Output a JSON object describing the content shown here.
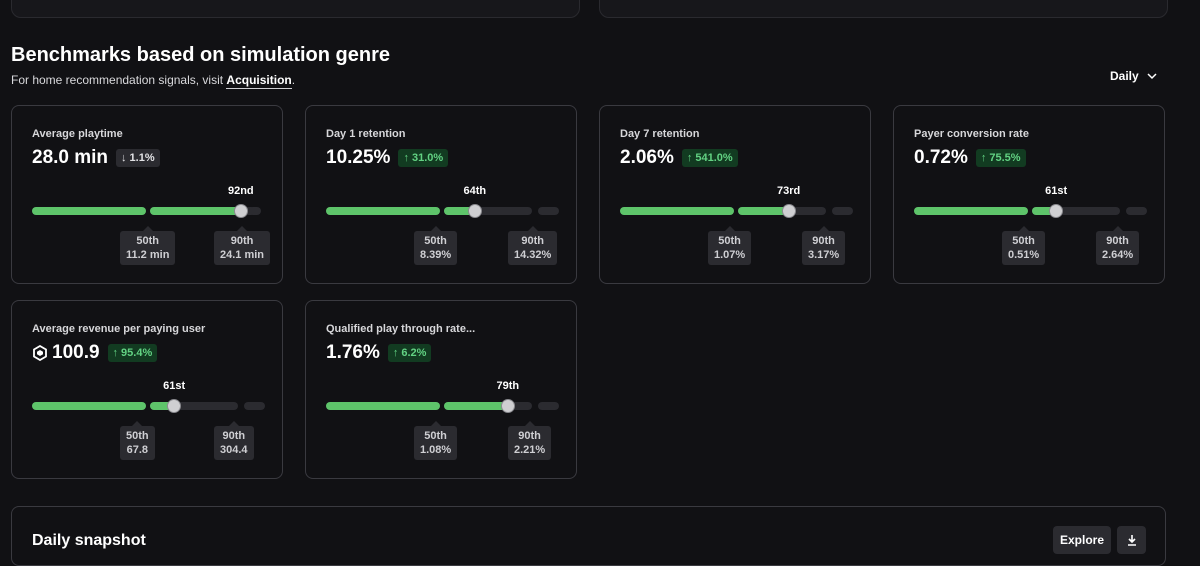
{
  "section": {
    "title": "Benchmarks based on simulation genre",
    "subtitle_prefix": "For home recommendation signals, visit ",
    "subtitle_link": "Acquisition",
    "subtitle_suffix": "."
  },
  "period_select": {
    "label": "Daily",
    "icon": "chevron-down-icon"
  },
  "colors": {
    "accent_green": "#5ec46a",
    "badge_up_bg": "#123b21",
    "badge_up_text": "#62d283",
    "card_border": "#3a3a40",
    "background": "#111114"
  },
  "metrics": [
    {
      "label": "Average playtime",
      "value": "28.0 min",
      "change": "1.1%",
      "direction": "down",
      "rank": "92nd",
      "percentile": 92,
      "p50_label": "50th",
      "p50_value": "11.2 min",
      "p90_label": "90th",
      "p90_value": "24.1 min"
    },
    {
      "label": "Day 1 retention",
      "value": "10.25%",
      "change": "31.0%",
      "direction": "up",
      "rank": "64th",
      "percentile": 64,
      "p50_label": "50th",
      "p50_value": "8.39%",
      "p90_label": "90th",
      "p90_value": "14.32%"
    },
    {
      "label": "Day 7 retention",
      "value": "2.06%",
      "change": "541.0%",
      "direction": "up",
      "rank": "73rd",
      "percentile": 73,
      "p50_label": "50th",
      "p50_value": "1.07%",
      "p90_label": "90th",
      "p90_value": "3.17%"
    },
    {
      "label": "Payer conversion rate",
      "value": "0.72%",
      "change": "75.5%",
      "direction": "up",
      "rank": "61st",
      "percentile": 61,
      "p50_label": "50th",
      "p50_value": "0.51%",
      "p90_label": "90th",
      "p90_value": "2.64%"
    },
    {
      "label": "Average revenue per paying user",
      "value": "100.9",
      "currency_icon": "robux-icon",
      "change": "95.4%",
      "direction": "up",
      "rank": "61st",
      "percentile": 61,
      "p50_label": "50th",
      "p50_value": "67.8",
      "p90_label": "90th",
      "p90_value": "304.4"
    },
    {
      "label": "Qualified play through rate...",
      "value": "1.76%",
      "change": "6.2%",
      "direction": "up",
      "rank": "79th",
      "percentile": 79,
      "p50_label": "50th",
      "p50_value": "1.08%",
      "p90_label": "90th",
      "p90_value": "2.21%"
    }
  ],
  "snapshot": {
    "title": "Daily snapshot",
    "explore_label": "Explore",
    "download_icon": "download-icon"
  }
}
